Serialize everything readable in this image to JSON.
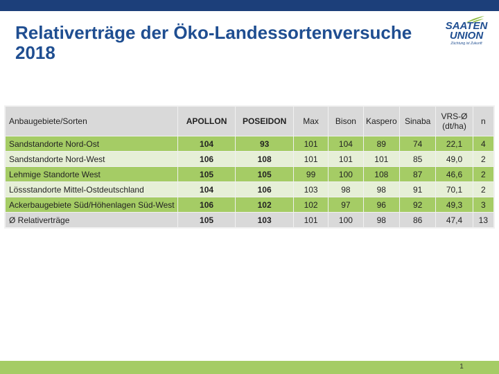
{
  "slide": {
    "title": "Relativerträge der Öko-Landessortenversuche 2018",
    "page_number": "1"
  },
  "logo": {
    "line1": "SAATEN",
    "line2": "UNION",
    "tagline": "Züchtung ist Zukunft"
  },
  "table": {
    "headers": [
      "Anbaugebiete/Sorten",
      "APOLLON",
      "POSEIDON",
      "Max",
      "Bison",
      "Kaspero",
      "Sinaba",
      "VRS-Ø",
      "(dt/ha)",
      "n"
    ],
    "rows": [
      {
        "region": "Sandstandorte Nord-Ost",
        "values": [
          "104",
          "93",
          "101",
          "104",
          "89",
          "74",
          "22,1",
          "4"
        ]
      },
      {
        "region": "Sandstandorte Nord-West",
        "values": [
          "106",
          "108",
          "101",
          "101",
          "101",
          "85",
          "49,0",
          "2"
        ]
      },
      {
        "region": "Lehmige Standorte West",
        "values": [
          "105",
          "105",
          "99",
          "100",
          "108",
          "87",
          "46,6",
          "2"
        ]
      },
      {
        "region": "Lössstandorte Mittel-Ostdeutschland",
        "values": [
          "104",
          "106",
          "103",
          "98",
          "98",
          "91",
          "70,1",
          "2"
        ]
      },
      {
        "region": "Ackerbaugebiete Süd/Höhenlagen Süd-West",
        "values": [
          "106",
          "102",
          "102",
          "97",
          "96",
          "92",
          "49,3",
          "3"
        ]
      },
      {
        "region": "Ø Relativerträge",
        "values": [
          "105",
          "103",
          "101",
          "100",
          "98",
          "86",
          "47,4",
          "13"
        ]
      }
    ]
  },
  "colors": {
    "header_bar": "#1c3f7a",
    "title": "#1f4e91",
    "green_dark": "#a5cc65",
    "green_light": "#e6efd7",
    "grey": "#d9d9d9"
  }
}
